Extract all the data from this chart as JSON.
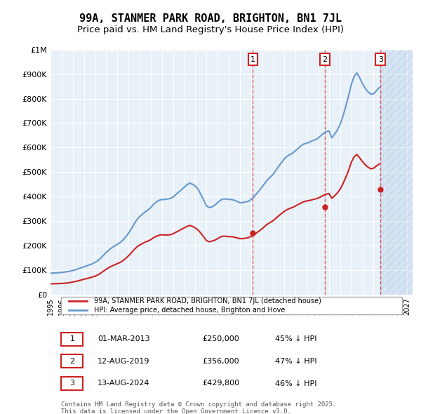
{
  "title": "99A, STANMER PARK ROAD, BRIGHTON, BN1 7JL",
  "subtitle": "Price paid vs. HM Land Registry's House Price Index (HPI)",
  "title_fontsize": 11,
  "subtitle_fontsize": 9.5,
  "background_color": "#ffffff",
  "plot_bg_color": "#e8f0f8",
  "hpi_color": "#6699cc",
  "price_color": "#cc2222",
  "ylim": [
    0,
    1000000
  ],
  "yticks": [
    0,
    100000,
    200000,
    300000,
    400000,
    500000,
    600000,
    700000,
    800000,
    900000,
    1000000
  ],
  "ytick_labels": [
    "£0",
    "£100K",
    "£200K",
    "£300K",
    "£400K",
    "£500K",
    "£600K",
    "£700K",
    "£800K",
    "£900K",
    "£1M"
  ],
  "xlim_start": 1995.0,
  "xlim_end": 2027.5,
  "sale_dates": [
    2013.17,
    2019.62,
    2024.62
  ],
  "sale_prices": [
    250000,
    356000,
    429800
  ],
  "sale_labels": [
    "1",
    "2",
    "3"
  ],
  "legend_entries": [
    "99A, STANMER PARK ROAD, BRIGHTON, BN1 7JL (detached house)",
    "HPI: Average price, detached house, Brighton and Hove"
  ],
  "table_rows": [
    [
      "1",
      "01-MAR-2013",
      "£250,000",
      "45% ↓ HPI"
    ],
    [
      "2",
      "12-AUG-2019",
      "£356,000",
      "47% ↓ HPI"
    ],
    [
      "3",
      "13-AUG-2024",
      "£429,800",
      "46% ↓ HPI"
    ]
  ],
  "footnote": "Contains HM Land Registry data © Crown copyright and database right 2025.\nThis data is licensed under the Open Government Licence v3.0.",
  "hpi_data_x": [
    1995.0,
    1995.25,
    1995.5,
    1995.75,
    1996.0,
    1996.25,
    1996.5,
    1996.75,
    1997.0,
    1997.25,
    1997.5,
    1997.75,
    1998.0,
    1998.25,
    1998.5,
    1998.75,
    1999.0,
    1999.25,
    1999.5,
    1999.75,
    2000.0,
    2000.25,
    2000.5,
    2000.75,
    2001.0,
    2001.25,
    2001.5,
    2001.75,
    2002.0,
    2002.25,
    2002.5,
    2002.75,
    2003.0,
    2003.25,
    2003.5,
    2003.75,
    2004.0,
    2004.25,
    2004.5,
    2004.75,
    2005.0,
    2005.25,
    2005.5,
    2005.75,
    2006.0,
    2006.25,
    2006.5,
    2006.75,
    2007.0,
    2007.25,
    2007.5,
    2007.75,
    2008.0,
    2008.25,
    2008.5,
    2008.75,
    2009.0,
    2009.25,
    2009.5,
    2009.75,
    2010.0,
    2010.25,
    2010.5,
    2010.75,
    2011.0,
    2011.25,
    2011.5,
    2011.75,
    2012.0,
    2012.25,
    2012.5,
    2012.75,
    2013.0,
    2013.25,
    2013.5,
    2013.75,
    2014.0,
    2014.25,
    2014.5,
    2014.75,
    2015.0,
    2015.25,
    2015.5,
    2015.75,
    2016.0,
    2016.25,
    2016.5,
    2016.75,
    2017.0,
    2017.25,
    2017.5,
    2017.75,
    2018.0,
    2018.25,
    2018.5,
    2018.75,
    2019.0,
    2019.25,
    2019.5,
    2019.75,
    2020.0,
    2020.25,
    2020.5,
    2020.75,
    2021.0,
    2021.25,
    2021.5,
    2021.75,
    2022.0,
    2022.25,
    2022.5,
    2022.75,
    2023.0,
    2023.25,
    2023.5,
    2023.75,
    2024.0,
    2024.25,
    2024.5
  ],
  "hpi_data_y": [
    87000,
    87500,
    88000,
    89000,
    90000,
    91500,
    93000,
    95000,
    98000,
    101000,
    105000,
    109000,
    113000,
    117000,
    121000,
    125000,
    131000,
    138000,
    148000,
    160000,
    172000,
    182000,
    191000,
    198000,
    205000,
    212000,
    222000,
    235000,
    250000,
    268000,
    288000,
    305000,
    318000,
    328000,
    338000,
    345000,
    355000,
    368000,
    378000,
    385000,
    388000,
    388000,
    390000,
    392000,
    398000,
    408000,
    418000,
    428000,
    438000,
    448000,
    455000,
    450000,
    442000,
    430000,
    408000,
    385000,
    362000,
    355000,
    358000,
    365000,
    375000,
    385000,
    390000,
    390000,
    388000,
    388000,
    385000,
    380000,
    375000,
    375000,
    378000,
    380000,
    388000,
    398000,
    412000,
    425000,
    440000,
    455000,
    470000,
    480000,
    492000,
    508000,
    525000,
    540000,
    555000,
    565000,
    572000,
    578000,
    588000,
    598000,
    608000,
    615000,
    618000,
    622000,
    628000,
    632000,
    638000,
    648000,
    658000,
    665000,
    668000,
    640000,
    655000,
    672000,
    695000,
    728000,
    768000,
    810000,
    858000,
    890000,
    905000,
    885000,
    862000,
    842000,
    828000,
    818000,
    820000,
    832000,
    845000
  ],
  "price_data_x": [
    1995.0,
    1995.25,
    1995.5,
    1995.75,
    1996.0,
    1996.25,
    1996.5,
    1996.75,
    1997.0,
    1997.25,
    1997.5,
    1997.75,
    1998.0,
    1998.25,
    1998.5,
    1998.75,
    1999.0,
    1999.25,
    1999.5,
    1999.75,
    2000.0,
    2000.25,
    2000.5,
    2000.75,
    2001.0,
    2001.25,
    2001.5,
    2001.75,
    2002.0,
    2002.25,
    2002.5,
    2002.75,
    2003.0,
    2003.25,
    2003.5,
    2003.75,
    2004.0,
    2004.25,
    2004.5,
    2004.75,
    2005.0,
    2005.25,
    2005.5,
    2005.75,
    2006.0,
    2006.25,
    2006.5,
    2006.75,
    2007.0,
    2007.25,
    2007.5,
    2007.75,
    2008.0,
    2008.25,
    2008.5,
    2008.75,
    2009.0,
    2009.25,
    2009.5,
    2009.75,
    2010.0,
    2010.25,
    2010.5,
    2010.75,
    2011.0,
    2011.25,
    2011.5,
    2011.75,
    2012.0,
    2012.25,
    2012.5,
    2012.75,
    2013.0,
    2013.25,
    2013.5,
    2013.75,
    2014.0,
    2014.25,
    2014.5,
    2014.75,
    2015.0,
    2015.25,
    2015.5,
    2015.75,
    2016.0,
    2016.25,
    2016.5,
    2016.75,
    2017.0,
    2017.25,
    2017.5,
    2017.75,
    2018.0,
    2018.25,
    2018.5,
    2018.75,
    2019.0,
    2019.25,
    2019.5,
    2019.75,
    2020.0,
    2020.25,
    2020.5,
    2020.75,
    2021.0,
    2021.25,
    2021.5,
    2021.75,
    2022.0,
    2022.25,
    2022.5,
    2022.75,
    2023.0,
    2023.25,
    2023.5,
    2023.75,
    2024.0,
    2024.25,
    2024.5
  ],
  "price_data_y": [
    43000,
    43500,
    44000,
    44500,
    45000,
    46000,
    47000,
    48500,
    51000,
    53000,
    56000,
    59000,
    62000,
    65000,
    68000,
    71000,
    75000,
    80000,
    87000,
    95000,
    103000,
    110000,
    116000,
    121000,
    126000,
    131000,
    138000,
    147000,
    158000,
    170000,
    183000,
    194000,
    202000,
    208000,
    214000,
    218000,
    224000,
    232000,
    238000,
    242000,
    244000,
    243000,
    243000,
    244000,
    248000,
    254000,
    260000,
    266000,
    272000,
    278000,
    282000,
    278000,
    272000,
    263000,
    250000,
    235000,
    220000,
    215000,
    218000,
    222000,
    228000,
    235000,
    238000,
    238000,
    236000,
    236000,
    234000,
    231000,
    228000,
    228000,
    230000,
    232000,
    237000,
    243000,
    252000,
    260000,
    269000,
    279000,
    288000,
    295000,
    302000,
    312000,
    322000,
    331000,
    340000,
    347000,
    352000,
    356000,
    362000,
    368000,
    374000,
    379000,
    382000,
    384000,
    387000,
    390000,
    393000,
    399000,
    405000,
    410000,
    412000,
    393000,
    403000,
    415000,
    430000,
    452000,
    478000,
    506000,
    540000,
    562000,
    572000,
    558000,
    543000,
    530000,
    520000,
    513000,
    516000,
    525000,
    533000
  ]
}
